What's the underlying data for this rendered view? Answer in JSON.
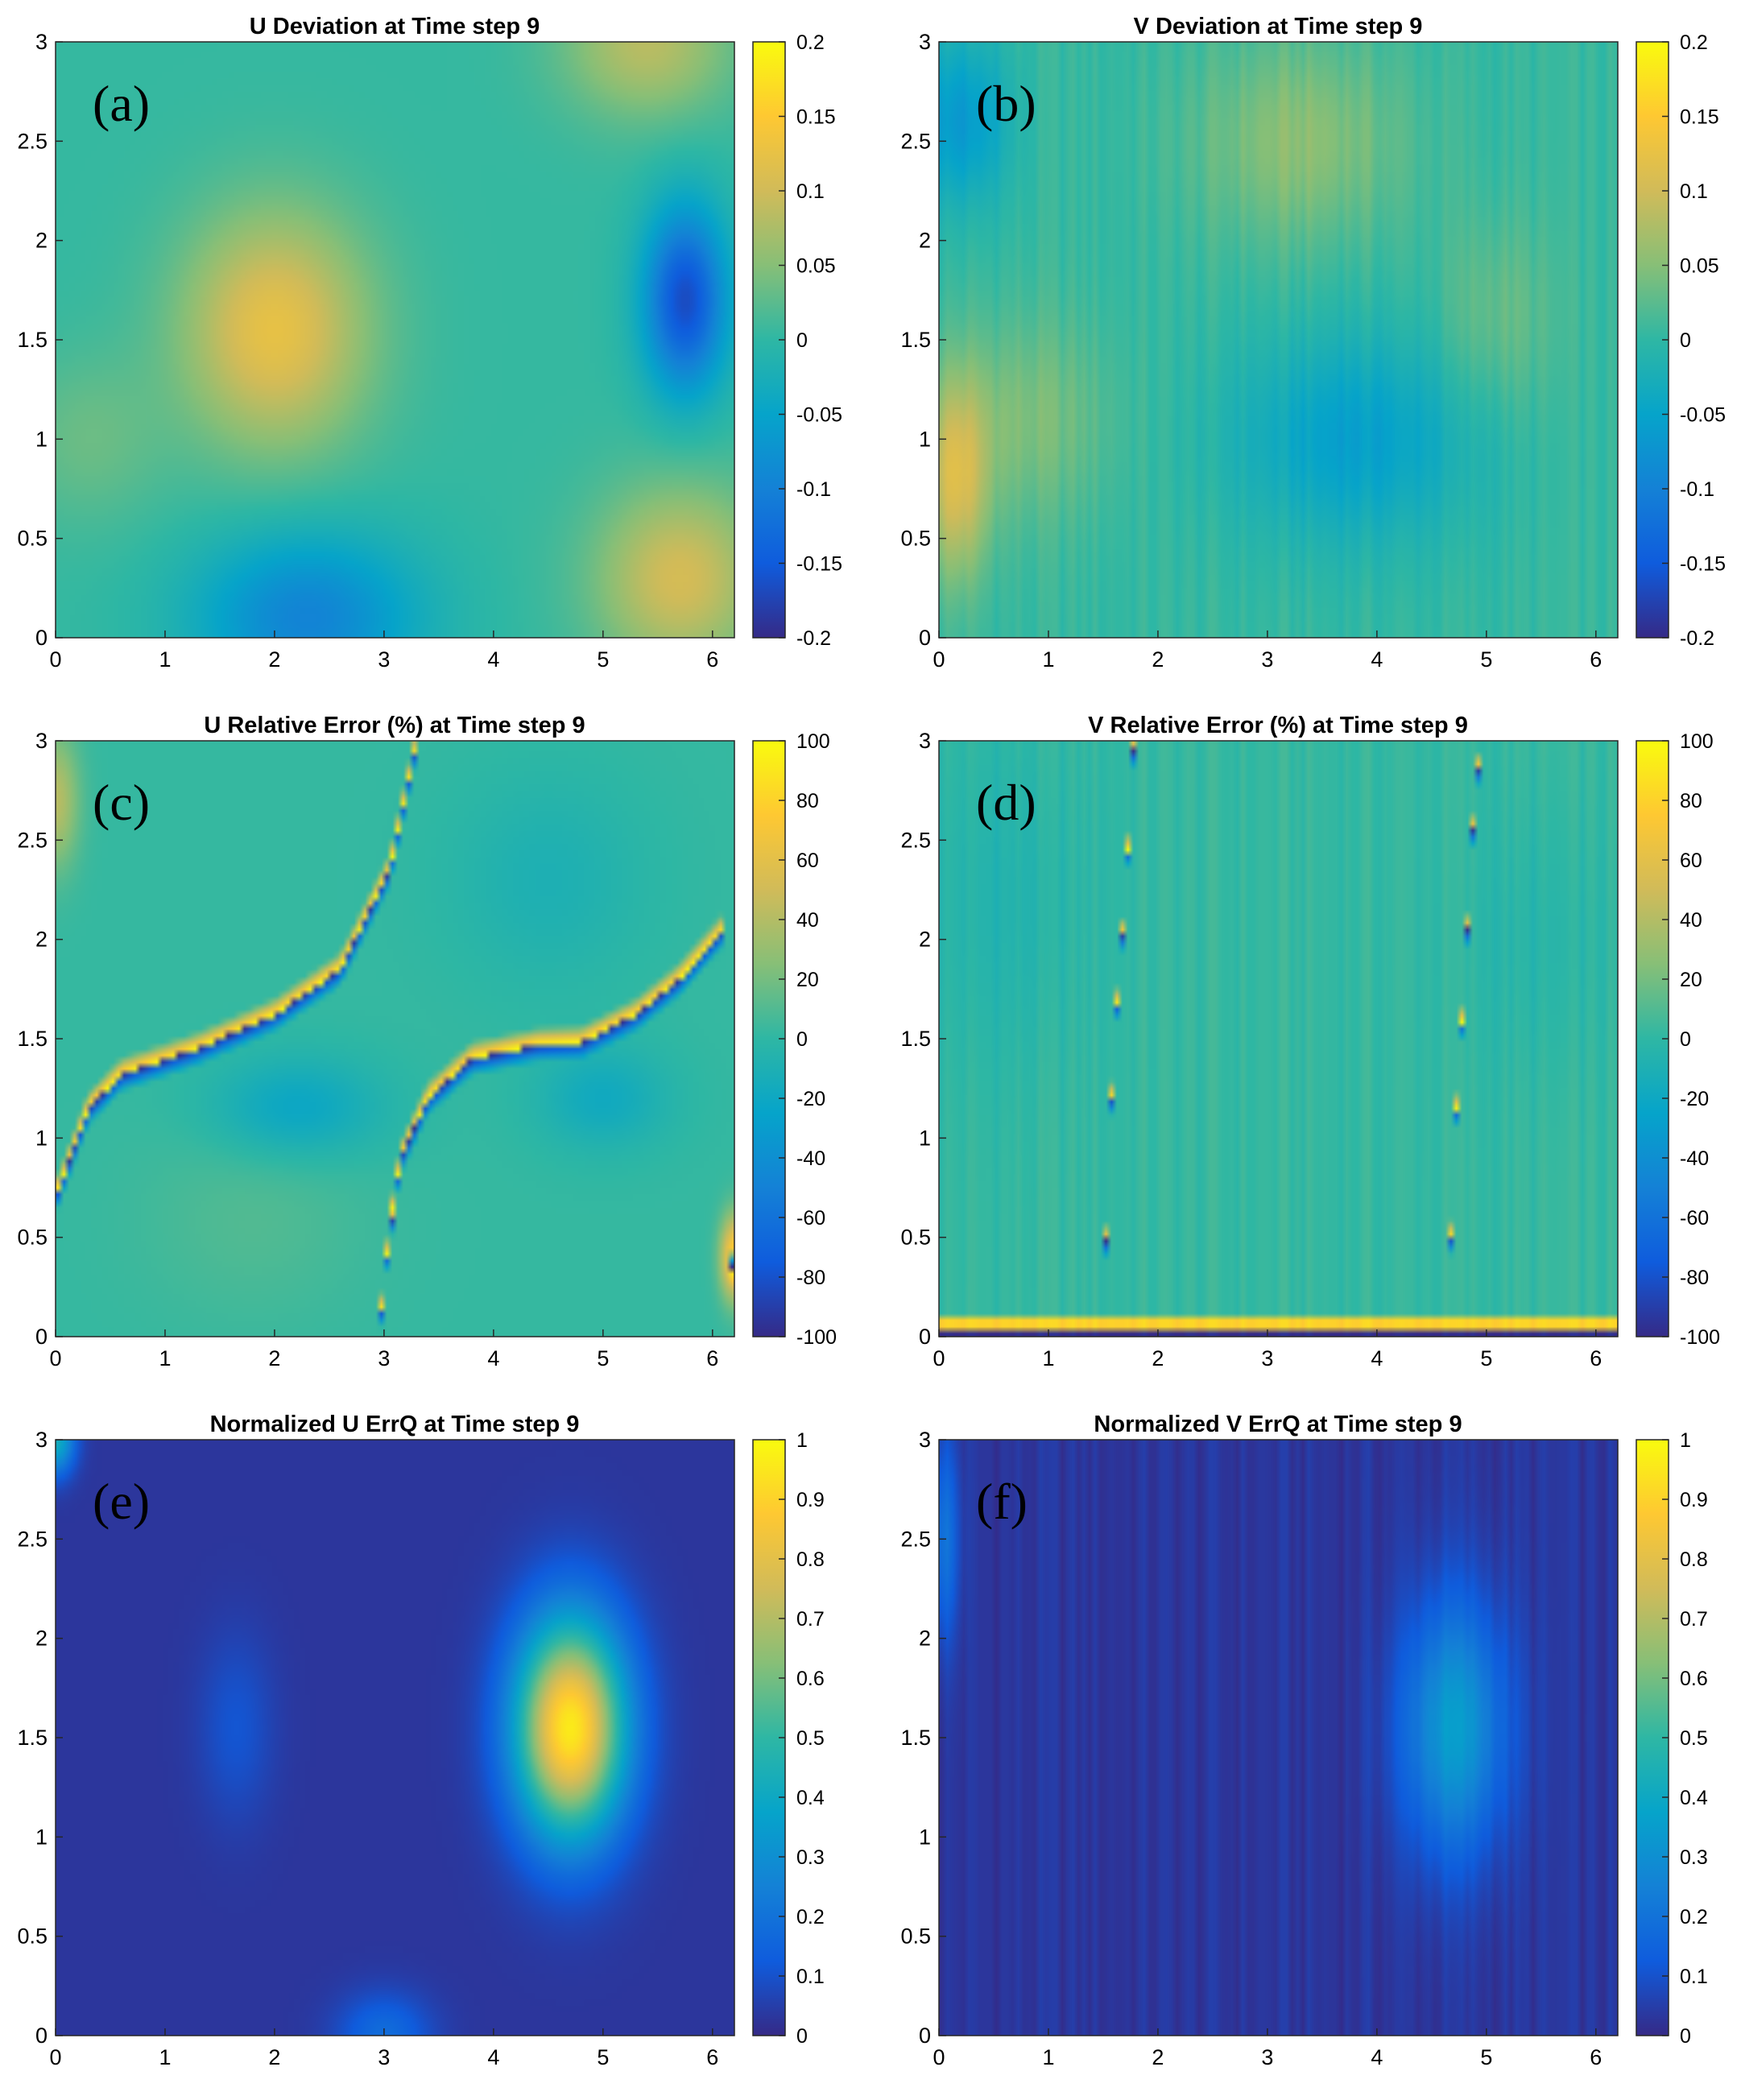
{
  "colors": {
    "parula": [
      "#352a87",
      "#0f5cdd",
      "#1481d6",
      "#06a4ca",
      "#2eb7a4",
      "#87bf77",
      "#d1bb59",
      "#fec832",
      "#f9fb0e"
    ]
  },
  "chart_data": [
    {
      "id": "a",
      "letter": "(a)",
      "type": "heatmap",
      "title": "U Deviation at Time step 9",
      "xlim": [
        0,
        6.2
      ],
      "ylim": [
        0,
        3
      ],
      "xticks": [
        "0",
        "1",
        "2",
        "3",
        "4",
        "5",
        "6"
      ],
      "yticks": [
        "0",
        "0.5",
        "1",
        "1.5",
        "2",
        "2.5",
        "3"
      ],
      "clim": [
        -0.2,
        0.2
      ],
      "cticks": [
        "-0.2",
        "-0.15",
        "-0.1",
        "-0.05",
        "0",
        "0.05",
        "0.1",
        "0.15",
        "0.2"
      ],
      "features": [
        {
          "kind": "blob",
          "x": 2.0,
          "y": 1.55,
          "rx": 1.0,
          "ry": 0.7,
          "value": 0.12
        },
        {
          "kind": "blob",
          "x": 5.75,
          "y": 1.7,
          "rx": 0.45,
          "ry": 0.55,
          "value": -0.17
        },
        {
          "kind": "blob",
          "x": 5.7,
          "y": 0.3,
          "rx": 0.9,
          "ry": 0.55,
          "value": 0.1
        },
        {
          "kind": "blob",
          "x": 5.4,
          "y": 3.0,
          "rx": 0.9,
          "ry": 0.45,
          "value": 0.08
        },
        {
          "kind": "blob",
          "x": 2.3,
          "y": 0.1,
          "rx": 1.2,
          "ry": 0.5,
          "value": -0.1
        },
        {
          "kind": "blob",
          "x": 0.3,
          "y": 1.0,
          "rx": 0.8,
          "ry": 0.5,
          "value": 0.03
        }
      ]
    },
    {
      "id": "b",
      "letter": "(b)",
      "type": "heatmap",
      "title": "V Deviation at Time step 9",
      "xlim": [
        0,
        6.2
      ],
      "ylim": [
        0,
        3
      ],
      "xticks": [
        "0",
        "1",
        "2",
        "3",
        "4",
        "5",
        "6"
      ],
      "yticks": [
        "0",
        "0.5",
        "1",
        "1.5",
        "2",
        "2.5",
        "3"
      ],
      "clim": [
        -0.2,
        0.2
      ],
      "cticks": [
        "-0.2",
        "-0.15",
        "-0.1",
        "-0.05",
        "0",
        "0.05",
        "0.1",
        "0.15",
        "0.2"
      ],
      "features": [
        {
          "kind": "blob",
          "x": 0.15,
          "y": 0.8,
          "rx": 0.35,
          "ry": 0.6,
          "value": 0.1
        },
        {
          "kind": "blob",
          "x": 0.8,
          "y": 1.1,
          "rx": 0.9,
          "ry": 0.6,
          "value": 0.04
        },
        {
          "kind": "blob",
          "x": 3.3,
          "y": 2.5,
          "rx": 1.1,
          "ry": 0.6,
          "value": 0.05
        },
        {
          "kind": "blob",
          "x": 3.8,
          "y": 1.0,
          "rx": 1.3,
          "ry": 0.6,
          "value": -0.06
        },
        {
          "kind": "blob",
          "x": 0.2,
          "y": 2.6,
          "rx": 0.5,
          "ry": 0.5,
          "value": -0.07
        },
        {
          "kind": "blob",
          "x": 5.1,
          "y": 1.6,
          "rx": 0.6,
          "ry": 0.6,
          "value": 0.03
        }
      ]
    },
    {
      "id": "c",
      "letter": "(c)",
      "type": "heatmap",
      "title": "U Relative Error (%) at Time step 9",
      "xlim": [
        0,
        6.2
      ],
      "ylim": [
        0,
        3
      ],
      "xticks": [
        "0",
        "1",
        "2",
        "3",
        "4",
        "5",
        "6"
      ],
      "yticks": [
        "0",
        "0.5",
        "1",
        "1.5",
        "2",
        "2.5",
        "3"
      ],
      "clim": [
        -100,
        100
      ],
      "cticks": [
        "-100",
        "-80",
        "-60",
        "-40",
        "-20",
        "0",
        "20",
        "40",
        "60",
        "80",
        "100"
      ],
      "features": [
        {
          "kind": "blob",
          "x": 1.8,
          "y": 0.6,
          "rx": 1.2,
          "ry": 0.6,
          "value": 8
        },
        {
          "kind": "blob",
          "x": 2.2,
          "y": 1.15,
          "rx": 0.9,
          "ry": 0.3,
          "value": -25
        },
        {
          "kind": "blob",
          "x": 5.0,
          "y": 1.2,
          "rx": 0.7,
          "ry": 0.3,
          "value": -20
        },
        {
          "kind": "blob",
          "x": 4.5,
          "y": 2.3,
          "rx": 1.0,
          "ry": 0.6,
          "value": -12
        },
        {
          "kind": "blob",
          "x": 0.0,
          "y": 2.7,
          "rx": 0.25,
          "ry": 0.4,
          "value": 40
        },
        {
          "kind": "blob",
          "x": 6.2,
          "y": 0.4,
          "rx": 0.15,
          "ry": 0.25,
          "value": 80
        },
        {
          "kind": "front",
          "points": [
            [
              0.0,
              0.7
            ],
            [
              0.3,
              1.15
            ],
            [
              0.6,
              1.32
            ],
            [
              1.3,
              1.45
            ],
            [
              2.0,
              1.62
            ],
            [
              2.6,
              1.85
            ],
            [
              3.05,
              2.35
            ],
            [
              3.3,
              3.0
            ]
          ],
          "pos": 100,
          "neg": -100,
          "upper": "pos"
        },
        {
          "kind": "front",
          "points": [
            [
              3.05,
              0.55
            ],
            [
              3.15,
              0.9
            ],
            [
              3.4,
              1.2
            ],
            [
              3.8,
              1.4
            ],
            [
              4.4,
              1.47
            ],
            [
              4.8,
              1.48
            ],
            [
              5.3,
              1.62
            ],
            [
              5.7,
              1.8
            ],
            [
              6.1,
              2.05
            ]
          ],
          "pos": 100,
          "neg": -100,
          "upper": "pos"
        },
        {
          "kind": "front",
          "points": [
            [
              2.95,
              0.0
            ],
            [
              3.05,
              0.55
            ],
            [
              3.1,
              0.65
            ]
          ],
          "pos": 100,
          "neg": -100,
          "upper": "pos"
        },
        {
          "kind": "front",
          "points": [
            [
              6.15,
              0.0
            ],
            [
              6.2,
              0.7
            ],
            [
              6.18,
              2.0
            ]
          ],
          "pos": 100,
          "neg": -100,
          "upper": "neg"
        }
      ]
    },
    {
      "id": "d",
      "letter": "(d)",
      "type": "heatmap",
      "title": "V Relative Error (%) at Time step 9",
      "xlim": [
        0,
        6.2
      ],
      "ylim": [
        0,
        3
      ],
      "xticks": [
        "0",
        "1",
        "2",
        "3",
        "4",
        "5",
        "6"
      ],
      "yticks": [
        "0",
        "0.5",
        "1",
        "1.5",
        "2",
        "2.5",
        "3"
      ],
      "clim": [
        -100,
        100
      ],
      "cticks": [
        "-100",
        "-80",
        "-60",
        "-40",
        "-20",
        "0",
        "20",
        "40",
        "60",
        "80",
        "100"
      ],
      "features": [
        {
          "kind": "blob",
          "x": 0.6,
          "y": 2.2,
          "rx": 0.9,
          "ry": 1.0,
          "value": -8
        },
        {
          "kind": "blob",
          "x": 5.5,
          "y": 2.0,
          "rx": 0.8,
          "ry": 0.8,
          "value": -6
        },
        {
          "kind": "front",
          "points": [
            [
              1.5,
              0.0
            ],
            [
              1.52,
              0.4
            ],
            [
              1.55,
              0.9
            ],
            [
              1.6,
              1.5
            ],
            [
              1.7,
              2.2
            ],
            [
              1.78,
              3.0
            ]
          ],
          "pos": 100,
          "neg": -100,
          "upper": "pos"
        },
        {
          "kind": "front",
          "points": [
            [
              4.65,
              0.0
            ],
            [
              4.68,
              0.6
            ],
            [
              4.72,
              1.1
            ],
            [
              4.8,
              1.8
            ],
            [
              4.88,
              2.6
            ],
            [
              4.95,
              3.0
            ]
          ],
          "pos": 100,
          "neg": -100,
          "upper": "pos"
        },
        {
          "kind": "band",
          "y0": 0.0,
          "y1": 0.05,
          "value": -100
        },
        {
          "kind": "band",
          "y0": 0.05,
          "y1": 0.1,
          "value": 80
        }
      ]
    },
    {
      "id": "e",
      "letter": "(e)",
      "type": "heatmap",
      "title": "Normalized U ErrQ at Time step 9",
      "xlim": [
        0,
        6.2
      ],
      "ylim": [
        0,
        3
      ],
      "xticks": [
        "0",
        "1",
        "2",
        "3",
        "4",
        "5",
        "6"
      ],
      "yticks": [
        "0",
        "0.5",
        "1",
        "1.5",
        "2",
        "2.5",
        "3"
      ],
      "clim": [
        0,
        1
      ],
      "cticks": [
        "0",
        "0.1",
        "0.2",
        "0.3",
        "0.4",
        "0.5",
        "0.6",
        "0.7",
        "0.8",
        "0.9",
        "1"
      ],
      "features": [
        {
          "kind": "blob",
          "x": 4.7,
          "y": 1.55,
          "rx": 0.6,
          "ry": 0.65,
          "value": 0.93
        },
        {
          "kind": "blob",
          "x": 1.65,
          "y": 1.55,
          "rx": 0.4,
          "ry": 0.55,
          "value": 0.08
        },
        {
          "kind": "blob",
          "x": 3.0,
          "y": 0.0,
          "rx": 0.5,
          "ry": 0.25,
          "value": 0.15
        },
        {
          "kind": "blob",
          "x": 0.0,
          "y": 3.0,
          "rx": 0.2,
          "ry": 0.2,
          "value": 0.4
        }
      ]
    },
    {
      "id": "f",
      "letter": "(f)",
      "type": "heatmap",
      "title": "Normalized V ErrQ at Time step 9",
      "xlim": [
        0,
        6.2
      ],
      "ylim": [
        0,
        3
      ],
      "xticks": [
        "0",
        "1",
        "2",
        "3",
        "4",
        "5",
        "6"
      ],
      "yticks": [
        "0",
        "0.5",
        "1",
        "1.5",
        "2",
        "2.5",
        "3"
      ],
      "clim": [
        0,
        1
      ],
      "cticks": [
        "0",
        "0.1",
        "0.2",
        "0.3",
        "0.4",
        "0.5",
        "0.6",
        "0.7",
        "0.8",
        "0.9",
        "1"
      ],
      "features": [
        {
          "kind": "blob",
          "x": 4.7,
          "y": 1.55,
          "rx": 0.55,
          "ry": 0.75,
          "value": 0.32
        },
        {
          "kind": "blob",
          "x": 0.05,
          "y": 2.5,
          "rx": 0.15,
          "ry": 0.6,
          "value": 0.18
        }
      ]
    }
  ]
}
